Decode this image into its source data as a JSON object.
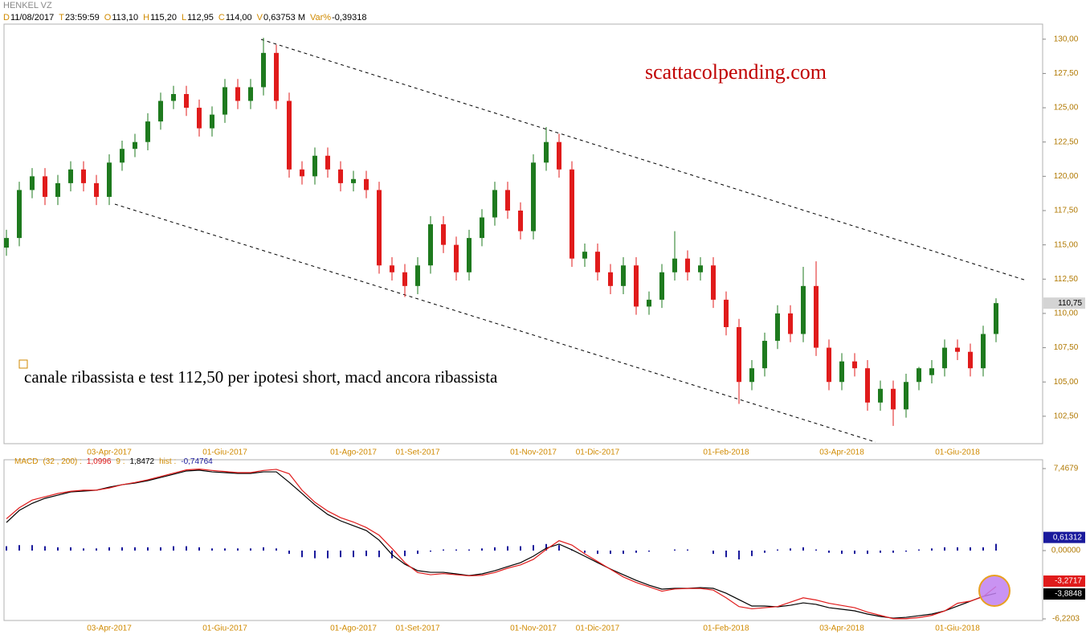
{
  "chart_data": [
    {
      "type": "candlestick",
      "title": "HENKEL VZ",
      "info": [
        {
          "key": "D",
          "value": "11/08/2017"
        },
        {
          "key": "T",
          "value": "23:59:59"
        },
        {
          "key": "O",
          "value": "113,10"
        },
        {
          "key": "H",
          "value": "115,20"
        },
        {
          "key": "L",
          "value": "112,95"
        },
        {
          "key": "C",
          "value": "114,00"
        },
        {
          "key": "V",
          "value": "0,63753 M"
        },
        {
          "key": "Var%",
          "value": "-0,39318"
        }
      ],
      "annotations": [
        "scattacolpending.com",
        "canale ribassista e test 112,50 per ipotesi short, macd ancora ribassista"
      ],
      "categories": [
        null,
        null,
        null,
        null,
        null,
        null,
        null,
        null,
        "03-Apr-2017",
        null,
        null,
        null,
        null,
        null,
        null,
        null,
        null,
        "01-Giu-2017",
        null,
        null,
        null,
        null,
        null,
        null,
        null,
        null,
        null,
        "01-Ago-2017",
        null,
        null,
        null,
        null,
        "01-Set-2017",
        null,
        null,
        null,
        null,
        null,
        null,
        null,
        null,
        "01-Nov-2017",
        null,
        null,
        null,
        null,
        "01-Dic-2017",
        null,
        null,
        null,
        null,
        null,
        null,
        null,
        null,
        null,
        "01-Feb-2018",
        null,
        null,
        null,
        null,
        null,
        null,
        null,
        null,
        "03-Apr-2018",
        null,
        null,
        null,
        null,
        null,
        null,
        null,
        null,
        "01-Giu-2018",
        null,
        null,
        null
      ],
      "open": [
        114.8,
        115.5,
        119,
        120,
        118.5,
        119.5,
        120.5,
        119.5,
        118.5,
        121,
        122,
        122.5,
        124,
        125.5,
        126,
        125,
        123.5,
        124.5,
        126.5,
        125.5,
        126.5,
        129,
        125.5,
        120.5,
        120,
        121.5,
        120.5,
        119.5,
        119.8,
        119,
        113.5,
        113,
        112,
        113.5,
        116.5,
        115,
        113,
        115.5,
        117,
        119,
        117.5,
        116,
        121,
        122.5,
        120.5,
        114,
        114.5,
        113,
        112,
        113.5,
        110.5,
        111,
        113,
        114,
        113,
        113.5,
        111,
        109,
        105,
        106,
        108,
        110,
        108.5,
        112,
        107.5,
        105,
        106.5,
        106,
        103.5,
        104.5,
        103,
        105,
        105.5,
        106,
        107.5,
        107.2,
        106,
        108.5
      ],
      "high": [
        116.1,
        119.6,
        120.6,
        120.6,
        120.1,
        121.1,
        121.1,
        120.1,
        121.6,
        122.6,
        123.1,
        124.6,
        126.1,
        126.6,
        126.6,
        125.6,
        125.1,
        127.1,
        127.1,
        127.1,
        130.1,
        129.6,
        126.1,
        121.1,
        122.1,
        122.1,
        121.1,
        120.4,
        120.4,
        119.6,
        114.1,
        113.6,
        114.1,
        117.1,
        117.1,
        115.6,
        116.1,
        117.6,
        119.6,
        119.6,
        118.1,
        121.6,
        123.6,
        123.1,
        121.1,
        115.1,
        115.1,
        113.6,
        114.1,
        114.1,
        111.6,
        113.6,
        116,
        114.6,
        114.1,
        114.1,
        111.6,
        109.6,
        106.6,
        108.6,
        110.6,
        110.6,
        113.4,
        113.8,
        108.1,
        107.1,
        107.1,
        106.6,
        105.1,
        105.1,
        105.6,
        106.1,
        106.6,
        108.1,
        108.1,
        107.8,
        109.1,
        111.1
      ],
      "low": [
        114.2,
        114.9,
        118.4,
        117.9,
        117.9,
        118.9,
        118.9,
        117.9,
        117.9,
        120.4,
        121.4,
        121.9,
        123.4,
        124.9,
        124.4,
        122.9,
        122.9,
        123.9,
        124.9,
        124.9,
        125.9,
        124.9,
        119.9,
        119.4,
        119.4,
        119.9,
        118.9,
        118.9,
        118.4,
        112.9,
        112.4,
        111.2,
        111.4,
        112.9,
        114.4,
        112.4,
        112.4,
        114.9,
        116.4,
        116.9,
        115.4,
        115.4,
        120.4,
        119.9,
        113.4,
        113.4,
        112.4,
        111.4,
        111.4,
        109.9,
        109.9,
        110.4,
        112.4,
        112.4,
        112.4,
        110.4,
        108.4,
        103.4,
        104.4,
        105.4,
        107.4,
        107.9,
        107.9,
        106.9,
        104.4,
        104.4,
        105.4,
        102.9,
        102.9,
        101.8,
        102.4,
        104.4,
        104.9,
        105.4,
        106.6,
        105.4,
        105.4,
        107.9
      ],
      "close": [
        115.5,
        119,
        120,
        118.5,
        119.5,
        120.5,
        119.5,
        118.5,
        121,
        122,
        122.5,
        124,
        125.5,
        126,
        125,
        123.5,
        124.5,
        126.5,
        125.5,
        126.5,
        129,
        125.5,
        120.5,
        120,
        121.5,
        120.5,
        119.5,
        119.8,
        119,
        113.5,
        113,
        112,
        113.5,
        116.5,
        115,
        113,
        115.5,
        117,
        119,
        117.5,
        116,
        121,
        122.5,
        120.5,
        114,
        114.5,
        113,
        112,
        113.5,
        110.5,
        111,
        113,
        114,
        113,
        113.5,
        111,
        109,
        105,
        106,
        108,
        110,
        108.5,
        112,
        107.5,
        105,
        106.5,
        106,
        103.5,
        104.5,
        103,
        105,
        106,
        106,
        107.5,
        107.2,
        106,
        108.5,
        110.75
      ],
      "last_label": "110,75",
      "up_color": "#1e7a1e",
      "down_color": "#e01b1b",
      "ylim": [
        100.5,
        131.1
      ],
      "yticks": [
        {
          "value": 102.5,
          "label": "102,50"
        },
        {
          "value": 105,
          "label": "105,00"
        },
        {
          "value": 107.5,
          "label": "107,50"
        },
        {
          "value": 110,
          "label": "110,00"
        },
        {
          "value": 112.5,
          "label": "112,50"
        },
        {
          "value": 115,
          "label": "115,00"
        },
        {
          "value": 117.5,
          "label": "117,50"
        },
        {
          "value": 120,
          "label": "120,00"
        },
        {
          "value": 122.5,
          "label": "122,50"
        },
        {
          "value": 125,
          "label": "125,00"
        },
        {
          "value": 127.5,
          "label": "127,50"
        },
        {
          "value": 130,
          "label": "130,00"
        }
      ]
    },
    {
      "type": "line",
      "title": "MACD",
      "legend_items": [
        {
          "label": "(32 , 200) :",
          "value": "1,0996",
          "color": "#e01b1b"
        },
        {
          "label": "9 :",
          "value": "1,8472",
          "color": "#000000"
        },
        {
          "label": "hist :",
          "value": "-0,74764",
          "color": "#1a1a9c"
        }
      ],
      "series": [
        {
          "color": "#000000",
          "last_label": "-3,8848",
          "values": [
            2.56,
            3.66,
            4.3,
            4.76,
            5.05,
            5.34,
            5.42,
            5.5,
            5.78,
            6.0,
            6.15,
            6.37,
            6.66,
            6.95,
            7.25,
            7.32,
            7.17,
            7.1,
            7.03,
            7.03,
            7.17,
            7.17,
            6.22,
            5.2,
            4.17,
            3.29,
            2.71,
            2.27,
            1.83,
            0.95,
            -0.37,
            -1.24,
            -1.83,
            -1.98,
            -1.98,
            -2.12,
            -2.27,
            -2.12,
            -1.83,
            -1.46,
            -1.1,
            -0.51,
            0.22,
            0.59,
            0.07,
            -0.51,
            -1.1,
            -1.68,
            -2.2,
            -2.71,
            -3.15,
            -3.51,
            -3.44,
            -3.44,
            -3.37,
            -3.44,
            -3.88,
            -4.47,
            -5.05,
            -5.05,
            -5.12,
            -4.98,
            -4.76,
            -4.9,
            -5.2,
            -5.34,
            -5.49,
            -5.78,
            -6.0,
            -6.15,
            -6.08,
            -5.93,
            -5.78,
            -5.49,
            -5.05,
            -4.61,
            -4.17,
            -3.8848
          ]
        },
        {
          "color": "#e01b1b",
          "last_label": "-3,2717",
          "values": [
            2.9,
            3.9,
            4.6,
            4.9,
            5.2,
            5.4,
            5.5,
            5.5,
            5.7,
            6.0,
            6.2,
            6.45,
            6.75,
            7.05,
            7.35,
            7.42,
            7.3,
            7.2,
            7.1,
            7.1,
            7.3,
            7.4,
            7.0,
            5.5,
            4.4,
            3.6,
            3.0,
            2.6,
            2.1,
            1.4,
            0.2,
            -1.1,
            -2.0,
            -2.2,
            -2.1,
            -2.2,
            -2.3,
            -2.25,
            -2.0,
            -1.6,
            -1.3,
            -0.8,
            0.1,
            0.9,
            0.5,
            -0.3,
            -1.0,
            -1.7,
            -2.4,
            -2.9,
            -3.3,
            -3.7,
            -3.5,
            -3.45,
            -3.45,
            -3.6,
            -4.3,
            -5.1,
            -5.3,
            -5.2,
            -5.1,
            -4.7,
            -4.3,
            -4.5,
            -4.8,
            -5.0,
            -5.2,
            -5.6,
            -5.9,
            -6.2,
            -6.2,
            -6.1,
            -5.9,
            -5.5,
            -4.8,
            -4.6,
            -4.2,
            -3.2717
          ]
        }
      ],
      "histogram": {
        "color": "#1a1a9c",
        "last_label": "0,61312",
        "values": [
          0.4,
          0.5,
          0.5,
          0.4,
          0.3,
          0.3,
          0.2,
          0.2,
          0.3,
          0.3,
          0.3,
          0.3,
          0.3,
          0.4,
          0.4,
          0.3,
          0.2,
          0.2,
          0.2,
          0.2,
          0.3,
          0.2,
          -0.3,
          -0.6,
          -0.7,
          -0.7,
          -0.6,
          -0.6,
          -0.5,
          -0.6,
          -0.7,
          -0.5,
          -0.3,
          -0.1,
          0.1,
          0.1,
          0.1,
          0.2,
          0.3,
          0.4,
          0.4,
          0.5,
          0.6,
          0.5,
          0.1,
          -0.2,
          -0.3,
          -0.3,
          -0.3,
          -0.2,
          -0.1,
          0.0,
          0.1,
          0.1,
          0.0,
          -0.3,
          -0.6,
          -0.8,
          -0.5,
          -0.2,
          0.1,
          0.2,
          0.3,
          0.1,
          -0.2,
          -0.3,
          -0.3,
          -0.3,
          -0.2,
          -0.2,
          -0.1,
          0.1,
          0.2,
          0.3,
          0.3,
          0.3,
          0.3,
          0.61312
        ]
      },
      "ylim": [
        -6.2203,
        7.4679
      ],
      "yticks": [
        {
          "value": -6.2203,
          "label": "-6,2203"
        },
        {
          "value": 0,
          "label": "0,00000"
        },
        {
          "value": 7.4679,
          "label": "7,4679"
        }
      ]
    }
  ]
}
